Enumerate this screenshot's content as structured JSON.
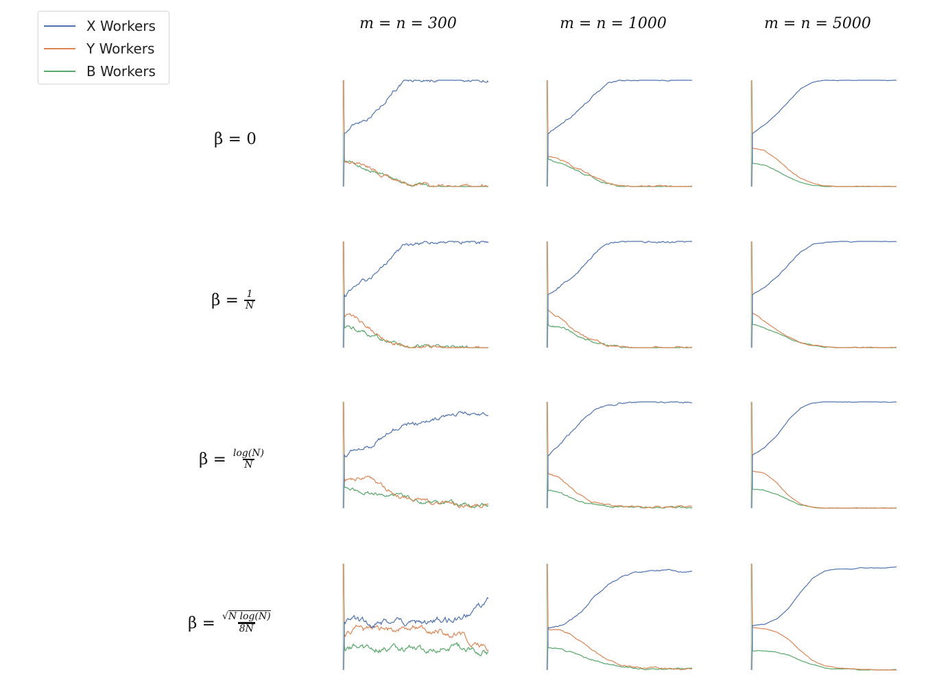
{
  "legend": {
    "items": [
      {
        "label": "X Workers",
        "color": "#4c72b0"
      },
      {
        "label": "Y Workers",
        "color": "#dd8452"
      },
      {
        "label": "B Workers",
        "color": "#55a868"
      }
    ]
  },
  "columns": [
    "m = n = 300",
    "m = n = 1000",
    "m = n = 5000"
  ],
  "rows": [
    {
      "label": "β = 0"
    },
    {
      "label": "β =",
      "num": "1",
      "den": "N"
    },
    {
      "label": "β =",
      "num": "log(N)",
      "den": "N"
    },
    {
      "label": "β =",
      "num_sqrt": "N log(N)",
      "den": "8N"
    }
  ],
  "chart_data": {
    "type": "line",
    "x_range": [
      0,
      1
    ],
    "y_range": [
      0,
      1
    ],
    "grid": false,
    "legend_position": "top-left",
    "series_names": [
      "X Workers",
      "Y Workers",
      "B Workers"
    ],
    "panels": [
      {
        "row": 0,
        "col": 0,
        "noise": 0.012,
        "x": [
          0.5,
          0.6,
          0.65,
          0.75,
          0.9,
          0.98,
          1,
          1,
          1,
          1,
          1,
          1,
          1
        ],
        "y": [
          0.25,
          0.22,
          0.18,
          0.12,
          0.08,
          0.04,
          0.02,
          0.01,
          0,
          0,
          0,
          0,
          0
        ],
        "b": [
          0.25,
          0.2,
          0.16,
          0.11,
          0.07,
          0.04,
          0.02,
          0.01,
          0,
          0,
          0,
          0,
          0
        ]
      },
      {
        "row": 0,
        "col": 1,
        "noise": 0.006,
        "x": [
          0.5,
          0.58,
          0.66,
          0.76,
          0.88,
          0.97,
          1,
          1,
          1,
          1,
          1,
          1,
          1
        ],
        "y": [
          0.29,
          0.26,
          0.2,
          0.14,
          0.08,
          0.04,
          0.01,
          0,
          0,
          0,
          0,
          0,
          0
        ],
        "b": [
          0.26,
          0.22,
          0.17,
          0.12,
          0.07,
          0.03,
          0.01,
          0,
          0,
          0,
          0,
          0,
          0
        ]
      },
      {
        "row": 0,
        "col": 2,
        "noise": 0.002,
        "x": [
          0.5,
          0.58,
          0.68,
          0.8,
          0.92,
          0.98,
          1,
          1,
          1,
          1,
          1,
          1,
          1
        ],
        "y": [
          0.36,
          0.34,
          0.26,
          0.16,
          0.08,
          0.03,
          0.01,
          0,
          0,
          0,
          0,
          0,
          0
        ],
        "b": [
          0.22,
          0.2,
          0.15,
          0.09,
          0.04,
          0.01,
          0,
          0,
          0,
          0,
          0,
          0,
          0
        ]
      },
      {
        "row": 1,
        "col": 0,
        "noise": 0.014,
        "x": [
          0.5,
          0.58,
          0.64,
          0.74,
          0.87,
          0.97,
          0.99,
          0.99,
          0.99,
          1,
          1,
          0.99,
          1
        ],
        "y": [
          0.3,
          0.28,
          0.2,
          0.12,
          0.06,
          0.02,
          0.01,
          0.01,
          0.01,
          0.01,
          0.01,
          0.01,
          0
        ],
        "b": [
          0.2,
          0.18,
          0.13,
          0.08,
          0.04,
          0.02,
          0.01,
          0.01,
          0,
          0,
          0.01,
          0,
          0
        ]
      },
      {
        "row": 1,
        "col": 1,
        "noise": 0.007,
        "x": [
          0.5,
          0.57,
          0.66,
          0.77,
          0.9,
          0.98,
          1,
          1,
          1,
          1,
          1,
          1,
          1
        ],
        "y": [
          0.36,
          0.28,
          0.18,
          0.11,
          0.06,
          0.02,
          0.01,
          0,
          0,
          0,
          0,
          0,
          0
        ],
        "b": [
          0.22,
          0.19,
          0.14,
          0.09,
          0.05,
          0.02,
          0.01,
          0,
          0,
          0,
          0,
          0,
          0
        ]
      },
      {
        "row": 1,
        "col": 2,
        "noise": 0.003,
        "x": [
          0.5,
          0.57,
          0.66,
          0.78,
          0.9,
          0.97,
          0.99,
          1,
          1,
          1,
          1,
          1,
          1
        ],
        "y": [
          0.33,
          0.25,
          0.17,
          0.1,
          0.05,
          0.02,
          0.01,
          0,
          0,
          0,
          0,
          0,
          0
        ],
        "b": [
          0.22,
          0.19,
          0.14,
          0.09,
          0.05,
          0.02,
          0.01,
          0,
          0,
          0,
          0,
          0,
          0
        ]
      },
      {
        "row": 2,
        "col": 0,
        "noise": 0.014,
        "x": [
          0.5,
          0.55,
          0.57,
          0.65,
          0.73,
          0.78,
          0.8,
          0.81,
          0.86,
          0.88,
          0.89,
          0.88,
          0.9
        ],
        "y": [
          0.28,
          0.27,
          0.29,
          0.21,
          0.14,
          0.1,
          0.06,
          0.05,
          0.04,
          0.05,
          0.03,
          0.03,
          0.04
        ],
        "b": [
          0.2,
          0.16,
          0.15,
          0.14,
          0.12,
          0.09,
          0.06,
          0.05,
          0.04,
          0.04,
          0.03,
          0.03,
          0.04
        ]
      },
      {
        "row": 2,
        "col": 1,
        "noise": 0.006,
        "x": [
          0.5,
          0.6,
          0.72,
          0.84,
          0.93,
          0.97,
          0.99,
          0.99,
          1,
          1,
          0.99,
          1,
          1
        ],
        "y": [
          0.33,
          0.28,
          0.18,
          0.1,
          0.05,
          0.03,
          0.02,
          0.01,
          0.01,
          0.01,
          0.01,
          0.01,
          0.01
        ],
        "b": [
          0.17,
          0.14,
          0.09,
          0.06,
          0.04,
          0.02,
          0.01,
          0.01,
          0.01,
          0.01,
          0.01,
          0.01,
          0.01
        ]
      },
      {
        "row": 2,
        "col": 2,
        "noise": 0.002,
        "x": [
          0.5,
          0.57,
          0.68,
          0.83,
          0.94,
          0.99,
          1,
          1,
          1,
          1,
          1,
          1,
          1
        ],
        "y": [
          0.35,
          0.33,
          0.24,
          0.12,
          0.04,
          0.01,
          0,
          0,
          0,
          0,
          0,
          0,
          0
        ],
        "b": [
          0.18,
          0.17,
          0.13,
          0.08,
          0.03,
          0.01,
          0,
          0,
          0,
          0,
          0,
          0,
          0
        ]
      },
      {
        "row": 3,
        "col": 0,
        "noise": 0.022,
        "x": [
          0.45,
          0.46,
          0.44,
          0.45,
          0.44,
          0.46,
          0.44,
          0.45,
          0.47,
          0.46,
          0.5,
          0.58,
          0.63
        ],
        "y": [
          0.34,
          0.37,
          0.36,
          0.38,
          0.37,
          0.38,
          0.4,
          0.39,
          0.38,
          0.34,
          0.3,
          0.25,
          0.2
        ],
        "b": [
          0.22,
          0.21,
          0.2,
          0.2,
          0.2,
          0.21,
          0.2,
          0.2,
          0.22,
          0.21,
          0.19,
          0.17,
          0.15
        ]
      },
      {
        "row": 3,
        "col": 1,
        "noise": 0.005,
        "x": [
          0.4,
          0.42,
          0.48,
          0.58,
          0.7,
          0.8,
          0.87,
          0.91,
          0.93,
          0.94,
          0.94,
          0.93,
          0.93
        ],
        "y": [
          0.39,
          0.38,
          0.33,
          0.25,
          0.16,
          0.09,
          0.05,
          0.03,
          0.02,
          0.02,
          0.01,
          0.01,
          0.01
        ],
        "b": [
          0.21,
          0.2,
          0.16,
          0.12,
          0.08,
          0.05,
          0.03,
          0.02,
          0.01,
          0.01,
          0.01,
          0.01,
          0.01
        ]
      },
      {
        "row": 3,
        "col": 2,
        "noise": 0.002,
        "x": [
          0.42,
          0.43,
          0.48,
          0.58,
          0.73,
          0.86,
          0.93,
          0.95,
          0.95,
          0.96,
          0.96,
          0.96,
          0.97
        ],
        "y": [
          0.4,
          0.39,
          0.36,
          0.29,
          0.18,
          0.09,
          0.04,
          0.02,
          0.01,
          0.01,
          0,
          0,
          0
        ],
        "b": [
          0.18,
          0.18,
          0.17,
          0.14,
          0.09,
          0.05,
          0.02,
          0.01,
          0.01,
          0,
          0,
          0,
          0
        ]
      }
    ]
  }
}
